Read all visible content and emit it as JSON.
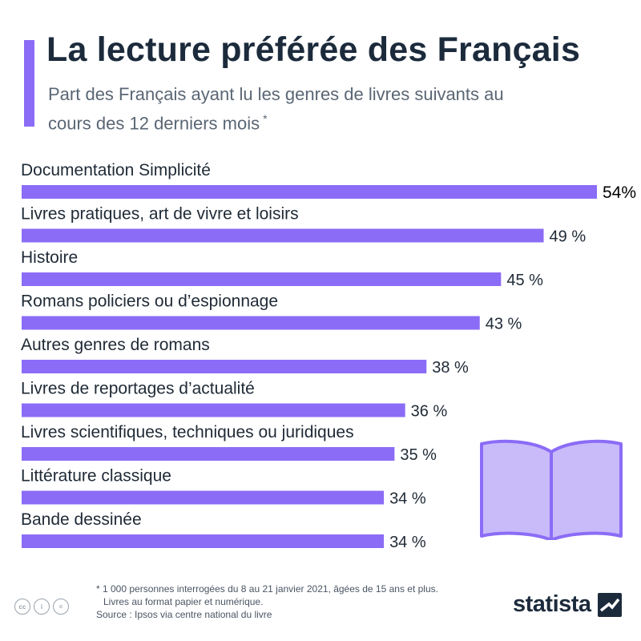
{
  "header": {
    "title": "La lecture préférée des Français",
    "subtitle": "Part des Français ayant lu les genres de livres suivants au cours des 12 derniers mois",
    "subtitle_mark": "*"
  },
  "colors": {
    "accent": "#8b6cf6",
    "bar": "#8b6cf6",
    "book_fill": "#c9baf9",
    "book_stroke": "#8b6cf6"
  },
  "chart_data": {
    "type": "bar",
    "orientation": "horizontal",
    "categories": [
      "Documentation Simplicité",
      "Livres pratiques, art de vivre et loisirs",
      "Histoire",
      "Romans policiers ou d’espionnage",
      "Autres genres de romans",
      "Livres de reportages d’actualité",
      "Livres scientifiques, techniques ou juridiques",
      "Littérature classique",
      "Bande dessinée"
    ],
    "values": [
      54,
      49,
      45,
      43,
      38,
      36,
      35,
      34,
      34
    ],
    "value_labels": [
      "54%",
      "49 %",
      "45 %",
      "43 %",
      "38 %",
      "36 %",
      "35 %",
      "34 %",
      "34 %"
    ],
    "unit": "%",
    "xlim": [
      0,
      54
    ],
    "grid": false,
    "legend": "none"
  },
  "footer": {
    "note_line1": "* 1 000 personnes interrogées du 8 au 21 janvier 2021, âgées de 15 ans et plus.",
    "note_line2": "Livres au format papier et numérique.",
    "source": "Source : Ipsos via centre national du livre",
    "brand": "statista",
    "license_icons": [
      "cc-icon",
      "by-icon",
      "nd-icon"
    ],
    "license_glyphs": [
      "cc",
      "i",
      "="
    ]
  }
}
